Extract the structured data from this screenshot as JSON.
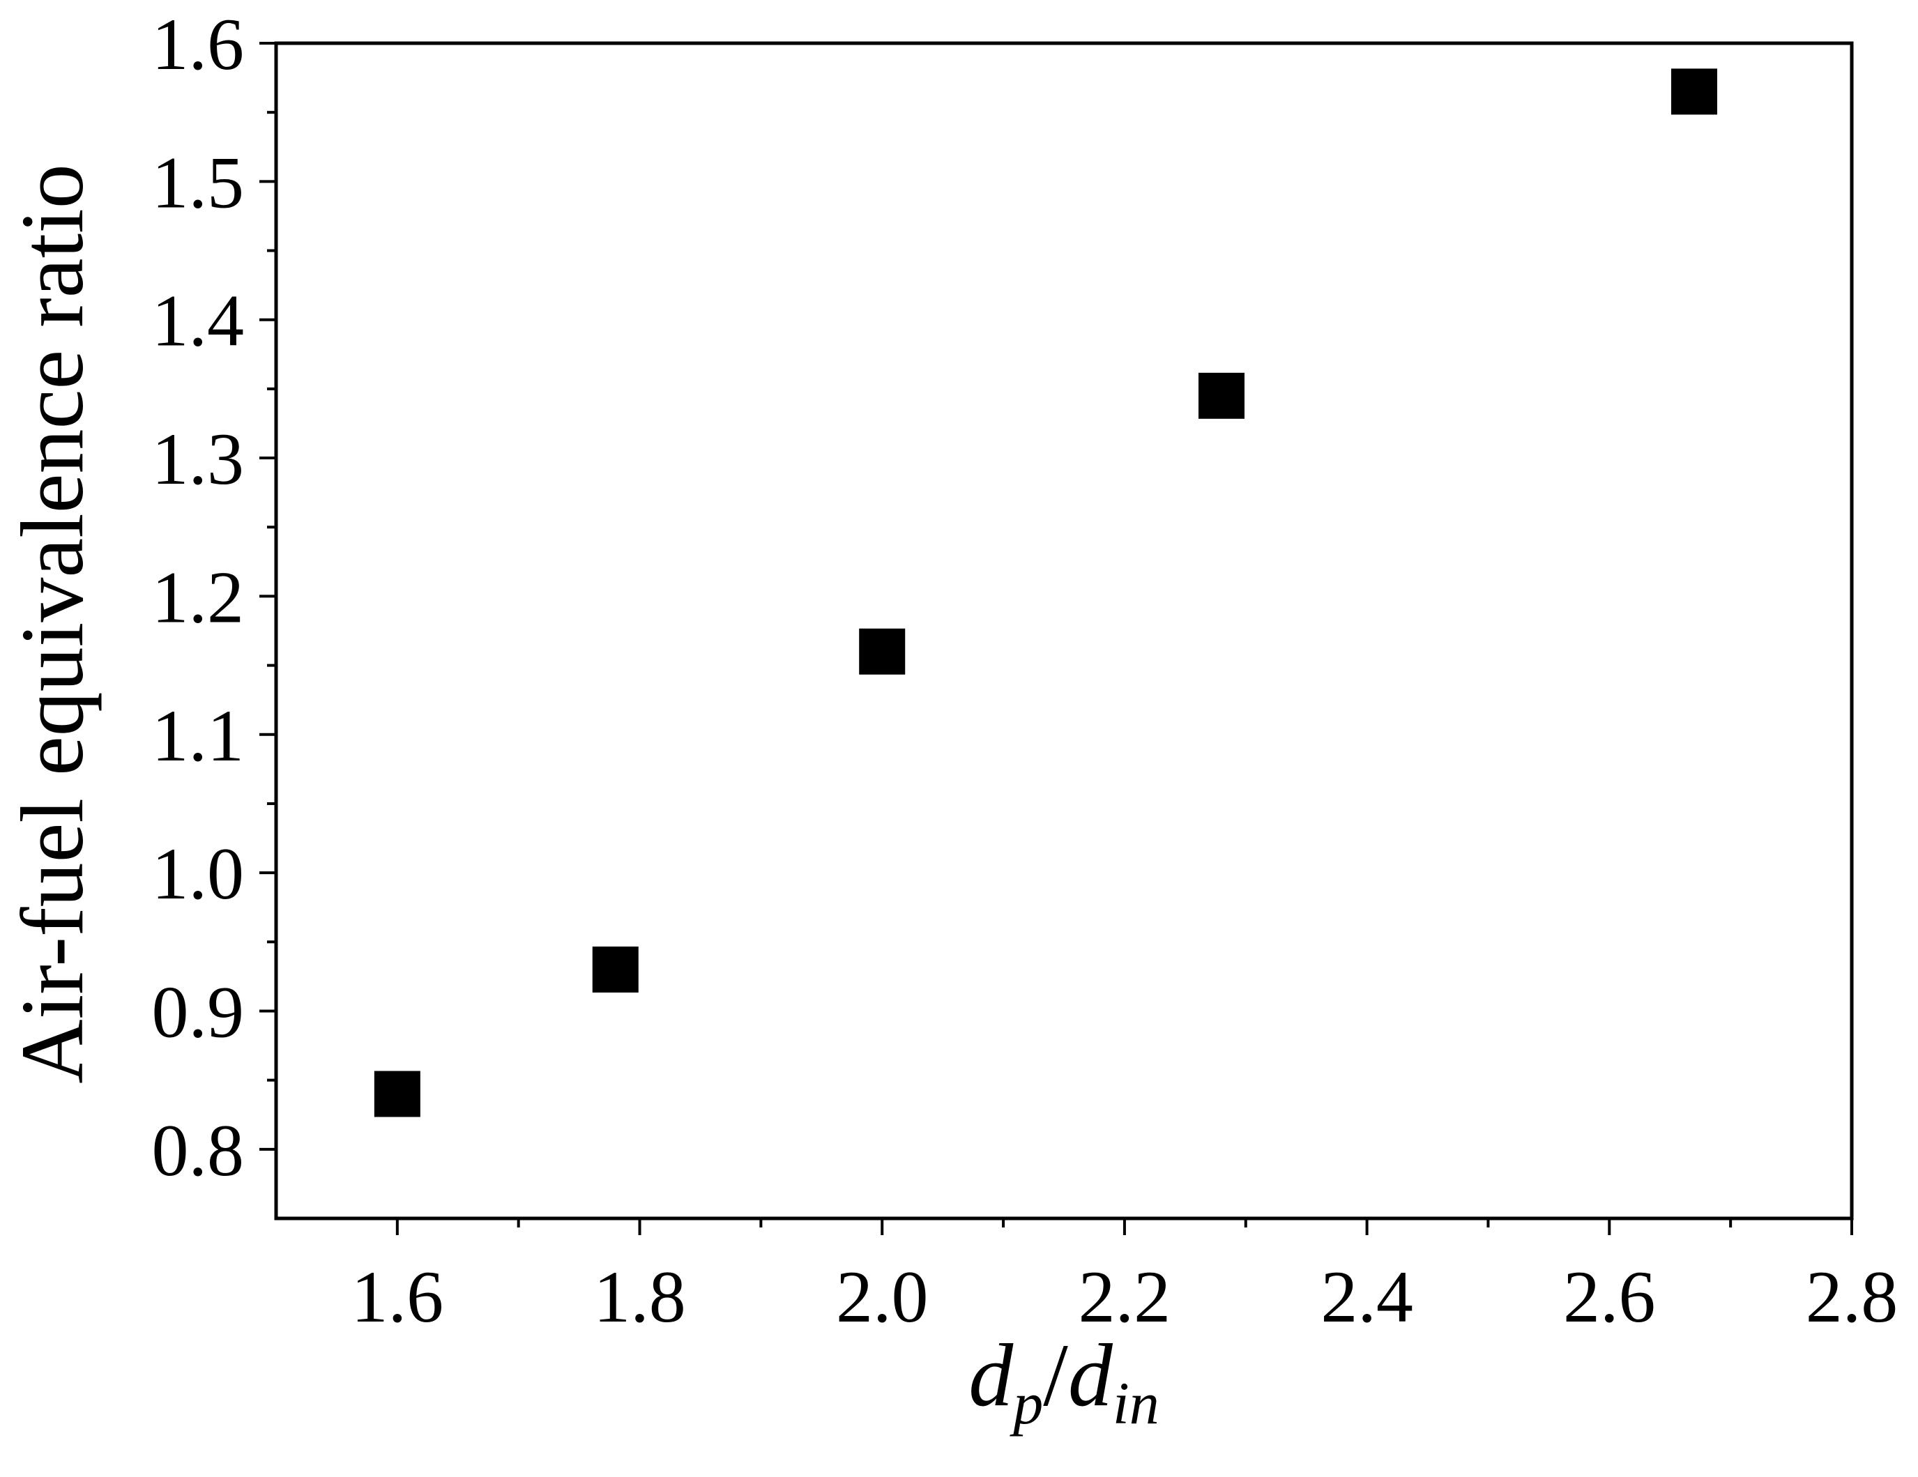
{
  "chart_data": {
    "type": "scatter",
    "title": "",
    "xlabel": {
      "parts": [
        {
          "text": "d",
          "italic": true,
          "sub": false
        },
        {
          "text": "p",
          "italic": true,
          "sub": true
        },
        {
          "text": "/",
          "italic": false,
          "sub": false
        },
        {
          "text": "d",
          "italic": true,
          "sub": false
        },
        {
          "text": "in",
          "italic": true,
          "sub": true
        }
      ]
    },
    "ylabel": "Air-fuel equivalence ratio",
    "xlim": [
      1.5,
      2.8
    ],
    "ylim": [
      0.75,
      1.6
    ],
    "x_ticks": [
      1.6,
      1.8,
      2.0,
      2.2,
      2.4,
      2.6,
      2.8
    ],
    "x_tick_labels": [
      "1.6",
      "1.8",
      "2.0",
      "2.2",
      "2.4",
      "2.6",
      "2.8"
    ],
    "y_ticks": [
      0.8,
      0.9,
      1.0,
      1.1,
      1.2,
      1.3,
      1.4,
      1.5,
      1.6
    ],
    "y_tick_labels": [
      "0.8",
      "0.9",
      "1.0",
      "1.1",
      "1.2",
      "1.3",
      "1.4",
      "1.5",
      "1.6"
    ],
    "x_minor_ticks": [
      1.7,
      1.9,
      2.1,
      2.3,
      2.5,
      2.7
    ],
    "y_minor_ticks": [
      0.85,
      0.95,
      1.05,
      1.15,
      1.25,
      1.35,
      1.45,
      1.55
    ],
    "grid": false,
    "legend": "none",
    "series": [
      {
        "marker": "square",
        "color": "#000000",
        "points": [
          {
            "x": 1.6,
            "y": 0.84
          },
          {
            "x": 1.78,
            "y": 0.93
          },
          {
            "x": 2.0,
            "y": 1.16
          },
          {
            "x": 2.28,
            "y": 1.345
          },
          {
            "x": 2.67,
            "y": 1.565
          }
        ]
      }
    ]
  }
}
